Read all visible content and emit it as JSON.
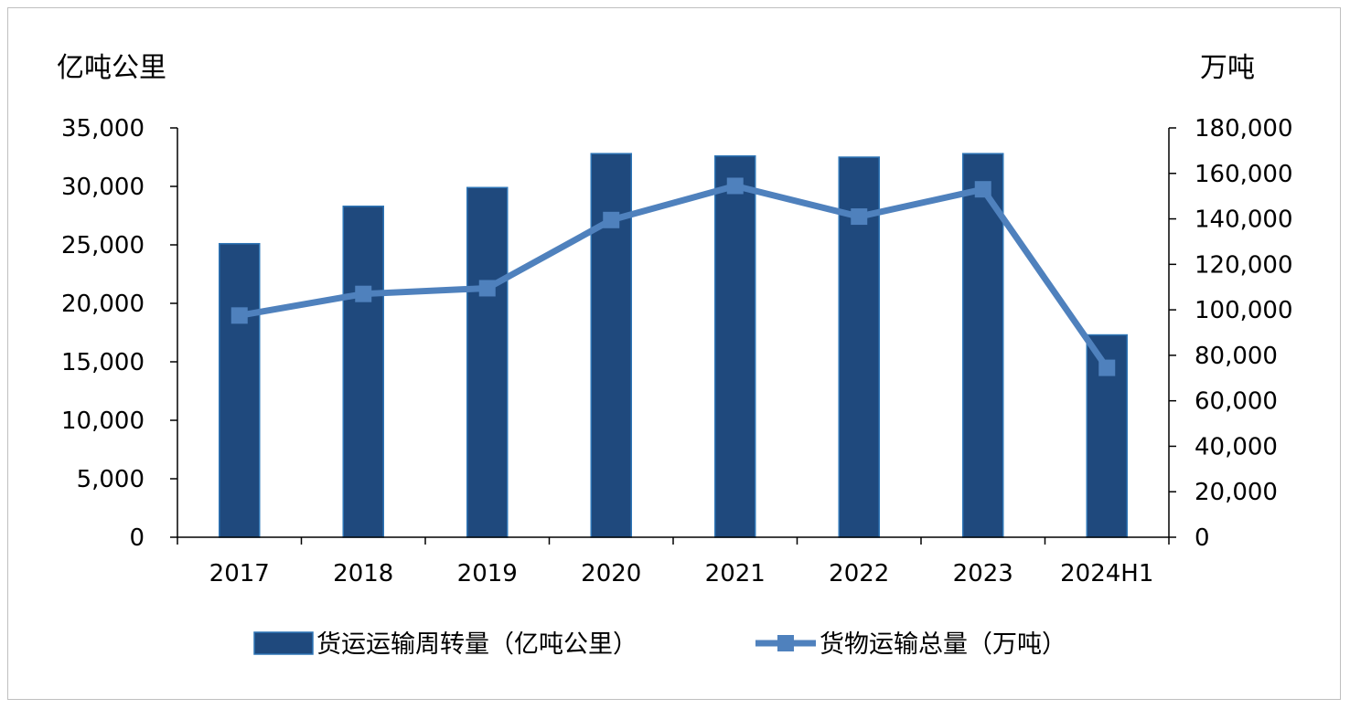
{
  "chart_data": {
    "type": "bar",
    "categories": [
      "2017",
      "2018",
      "2019",
      "2020",
      "2021",
      "2022",
      "2023",
      "2024H1"
    ],
    "y_left": {
      "label": "亿吨公里",
      "lim": [
        0,
        35000
      ],
      "ticks": [
        0,
        5000,
        10000,
        15000,
        20000,
        25000,
        30000,
        35000
      ],
      "tick_labels": [
        "0",
        "5,000",
        "10,000",
        "15,000",
        "20,000",
        "25,000",
        "30,000",
        "35,000"
      ]
    },
    "y_right": {
      "label": "万吨",
      "lim": [
        0,
        180000
      ],
      "ticks": [
        0,
        20000,
        40000,
        60000,
        80000,
        100000,
        120000,
        140000,
        160000,
        180000
      ],
      "tick_labels": [
        "0",
        "20,000",
        "40,000",
        "60,000",
        "80,000",
        "100,000",
        "120,000",
        "140,000",
        "160,000",
        "180,000"
      ]
    },
    "series": [
      {
        "name": "货运运输周转量（亿吨公里）",
        "type": "bar",
        "axis": "left",
        "color": "#1f497d",
        "values": [
          25100,
          28300,
          29900,
          32800,
          32600,
          32500,
          32800,
          17300
        ]
      },
      {
        "name": "货物运输总量（万吨）",
        "type": "line",
        "axis": "right",
        "color": "#4f81bd",
        "values": [
          97500,
          107000,
          109500,
          139500,
          154500,
          141000,
          153000,
          74500
        ]
      }
    ],
    "grid": false,
    "legend": "bottom"
  }
}
